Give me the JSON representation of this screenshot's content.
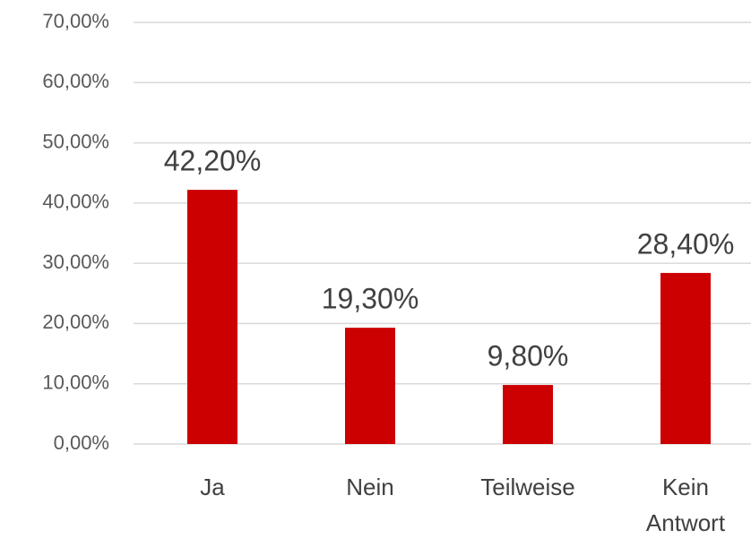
{
  "chart_data": {
    "type": "bar",
    "categories": [
      "Ja",
      "Nein",
      "Teilweise",
      "Kein Antwort"
    ],
    "values": [
      42.2,
      19.3,
      9.8,
      28.4
    ],
    "value_labels": [
      "42,20%",
      "19,30%",
      "9,80%",
      "28,40%"
    ],
    "color": "#cc0000",
    "ylim": [
      0,
      70
    ],
    "yticks": [
      {
        "value": 0,
        "label": "0,00%"
      },
      {
        "value": 10,
        "label": "10,00%"
      },
      {
        "value": 20,
        "label": "20,00%"
      },
      {
        "value": 30,
        "label": "30,00%"
      },
      {
        "value": 40,
        "label": "40,00%"
      },
      {
        "value": 50,
        "label": "50,00%"
      },
      {
        "value": 60,
        "label": "60,00%"
      },
      {
        "value": 70,
        "label": "70,00%"
      }
    ],
    "grid": true
  }
}
